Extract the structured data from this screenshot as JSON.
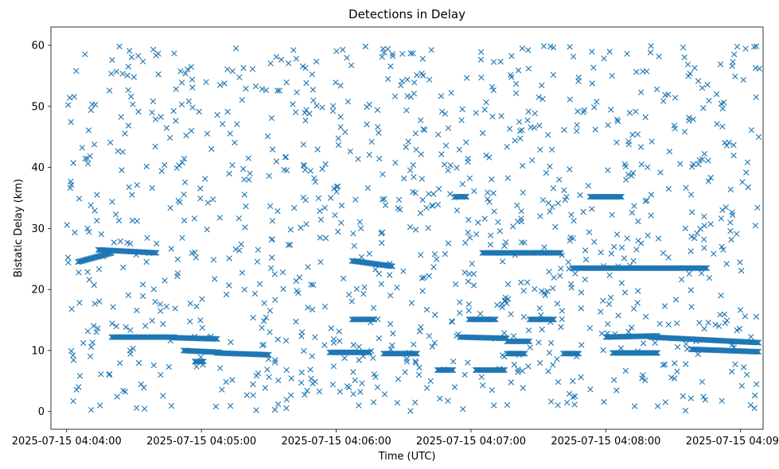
{
  "chart_data": {
    "type": "scatter",
    "title": "Detections in Delay",
    "xlabel": "Time (UTC)",
    "ylabel": "Bistatic Delay (km)",
    "marker": "x",
    "color": "#1f77b4",
    "grid": false,
    "xlim": [
      "2025-07-15 04:03:53",
      "2025-07-15 04:09:10"
    ],
    "ylim": [
      -2.9,
      63.0
    ],
    "x_ticks": [
      "2025-07-15 04:04:00",
      "2025-07-15 04:05:00",
      "2025-07-15 04:06:00",
      "2025-07-15 04:07:00",
      "2025-07-15 04:08:00",
      "2025-07-15 04:09:00"
    ],
    "y_ticks": [
      0,
      10,
      20,
      30,
      40,
      50,
      60
    ],
    "tracks": [
      {
        "start": "2025-07-15 04:04:14",
        "end": "2025-07-15 04:04:40",
        "y": [
          26.5,
          26.0
        ]
      },
      {
        "start": "2025-07-15 04:04:05",
        "end": "2025-07-15 04:04:20",
        "y": [
          24.5,
          26.0
        ]
      },
      {
        "start": "2025-07-15 04:04:20",
        "end": "2025-07-15 04:04:48",
        "y": [
          12.2,
          12.2
        ]
      },
      {
        "start": "2025-07-15 04:04:48",
        "end": "2025-07-15 04:05:07",
        "y": [
          12.1,
          11.9
        ]
      },
      {
        "start": "2025-07-15 04:04:52",
        "end": "2025-07-15 04:05:08",
        "y": [
          10.0,
          9.7
        ]
      },
      {
        "start": "2025-07-15 04:04:57",
        "end": "2025-07-15 04:05:01",
        "y": [
          8.2,
          8.2
        ]
      },
      {
        "start": "2025-07-15 04:05:07",
        "end": "2025-07-15 04:05:30",
        "y": [
          9.6,
          9.3
        ]
      },
      {
        "start": "2025-07-15 04:05:57",
        "end": "2025-07-15 04:06:15",
        "y": [
          9.7,
          9.7
        ]
      },
      {
        "start": "2025-07-15 04:06:07",
        "end": "2025-07-15 04:06:17",
        "y": [
          15.1,
          15.1
        ]
      },
      {
        "start": "2025-07-15 04:06:07",
        "end": "2025-07-15 04:06:25",
        "y": [
          24.7,
          23.8
        ]
      },
      {
        "start": "2025-07-15 04:06:21",
        "end": "2025-07-15 04:06:36",
        "y": [
          9.5,
          9.5
        ]
      },
      {
        "start": "2025-07-15 04:06:45",
        "end": "2025-07-15 04:06:52",
        "y": [
          6.8,
          6.8
        ]
      },
      {
        "start": "2025-07-15 04:06:53",
        "end": "2025-07-15 04:06:58",
        "y": [
          35.2,
          35.2
        ]
      },
      {
        "start": "2025-07-15 04:06:59",
        "end": "2025-07-15 04:07:11",
        "y": [
          15.1,
          15.1
        ]
      },
      {
        "start": "2025-07-15 04:06:55",
        "end": "2025-07-15 04:07:16",
        "y": [
          12.2,
          12.0
        ]
      },
      {
        "start": "2025-07-15 04:07:02",
        "end": "2025-07-15 04:07:15",
        "y": [
          6.8,
          6.8
        ]
      },
      {
        "start": "2025-07-15 04:07:05",
        "end": "2025-07-15 04:07:40",
        "y": [
          26.0,
          26.0
        ]
      },
      {
        "start": "2025-07-15 04:07:16",
        "end": "2025-07-15 04:07:26",
        "y": [
          11.5,
          11.5
        ]
      },
      {
        "start": "2025-07-15 04:07:16",
        "end": "2025-07-15 04:07:24",
        "y": [
          9.5,
          9.5
        ]
      },
      {
        "start": "2025-07-15 04:07:26",
        "end": "2025-07-15 04:07:37",
        "y": [
          15.1,
          15.1
        ]
      },
      {
        "start": "2025-07-15 04:07:41",
        "end": "2025-07-15 04:07:48",
        "y": [
          9.5,
          9.5
        ]
      },
      {
        "start": "2025-07-15 04:07:53",
        "end": "2025-07-15 04:08:07",
        "y": [
          35.2,
          35.2
        ]
      },
      {
        "start": "2025-07-15 04:07:45",
        "end": "2025-07-15 04:08:45",
        "y": [
          23.5,
          23.5
        ]
      },
      {
        "start": "2025-07-15 04:08:00",
        "end": "2025-07-15 04:08:23",
        "y": [
          12.2,
          12.4
        ]
      },
      {
        "start": "2025-07-15 04:08:03",
        "end": "2025-07-15 04:08:23",
        "y": [
          9.6,
          9.6
        ]
      },
      {
        "start": "2025-07-15 04:08:20",
        "end": "2025-07-15 04:09:08",
        "y": [
          12.2,
          11.3
        ]
      },
      {
        "start": "2025-07-15 04:08:38",
        "end": "2025-07-15 04:09:08",
        "y": [
          10.2,
          9.8
        ]
      }
    ],
    "scatter": {
      "count": 1100,
      "start": "2025-07-15 04:04:00",
      "end": "2025-07-15 04:09:09",
      "y_range": [
        0,
        60
      ],
      "y_dist": "uniform"
    }
  }
}
